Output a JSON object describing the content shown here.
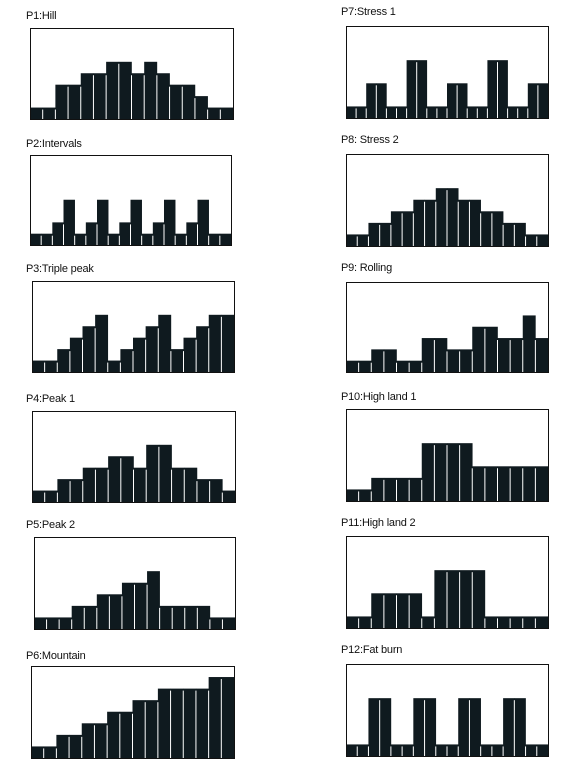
{
  "programs": [
    {
      "label": "P1:Hill",
      "levels": [
        1,
        1,
        3,
        3,
        4,
        4,
        5,
        5,
        4,
        5,
        4,
        3,
        3,
        2,
        1,
        1
      ]
    },
    {
      "label": "P2:Intervals",
      "levels": [
        1,
        1,
        2,
        4,
        1,
        2,
        4,
        1,
        2,
        4,
        1,
        2,
        4,
        1,
        2,
        4,
        1,
        1
      ]
    },
    {
      "label": "P3:Triple peak",
      "levels": [
        1,
        1,
        2,
        3,
        4,
        5,
        1,
        2,
        3,
        4,
        5,
        2,
        3,
        4,
        5,
        5
      ]
    },
    {
      "label": "P4:Peak 1",
      "levels": [
        1,
        1,
        2,
        2,
        3,
        3,
        4,
        4,
        3,
        5,
        5,
        3,
        3,
        2,
        2,
        1
      ]
    },
    {
      "label": "P5:Peak 2",
      "levels": [
        1,
        1,
        1,
        2,
        2,
        3,
        3,
        4,
        4,
        5,
        2,
        2,
        2,
        2,
        1,
        1
      ]
    },
    {
      "label": "P6:Mountain",
      "levels": [
        1,
        1,
        2,
        2,
        3,
        3,
        4,
        4,
        5,
        5,
        6,
        6,
        6,
        6,
        7,
        7
      ]
    },
    {
      "label": "P7:Stress 1",
      "levels": [
        1,
        1,
        3,
        3,
        1,
        1,
        5,
        5,
        1,
        1,
        3,
        3,
        1,
        1,
        5,
        5,
        1,
        1,
        3,
        3
      ]
    },
    {
      "label": "P8: Stress 2",
      "levels": [
        1,
        1,
        2,
        2,
        3,
        3,
        4,
        4,
        5,
        5,
        4,
        4,
        3,
        3,
        2,
        2,
        1,
        1
      ]
    },
    {
      "label": "P9: Rolling",
      "levels": [
        1,
        1,
        2,
        2,
        1,
        1,
        3,
        3,
        2,
        2,
        4,
        4,
        3,
        3,
        5,
        3
      ]
    },
    {
      "label": "P10:High land 1",
      "levels": [
        1,
        1,
        2,
        2,
        2,
        2,
        5,
        5,
        5,
        5,
        3,
        3,
        3,
        3,
        3,
        3
      ]
    },
    {
      "label": "P11:High land 2",
      "levels": [
        1,
        1,
        3,
        3,
        3,
        3,
        1,
        5,
        5,
        5,
        5,
        1,
        1,
        1,
        1,
        1
      ]
    },
    {
      "label": "P12:Fat burn",
      "levels": [
        1,
        1,
        5,
        5,
        1,
        1,
        5,
        5,
        1,
        1,
        5,
        5,
        1,
        1,
        5,
        5,
        1,
        1
      ]
    }
  ]
}
